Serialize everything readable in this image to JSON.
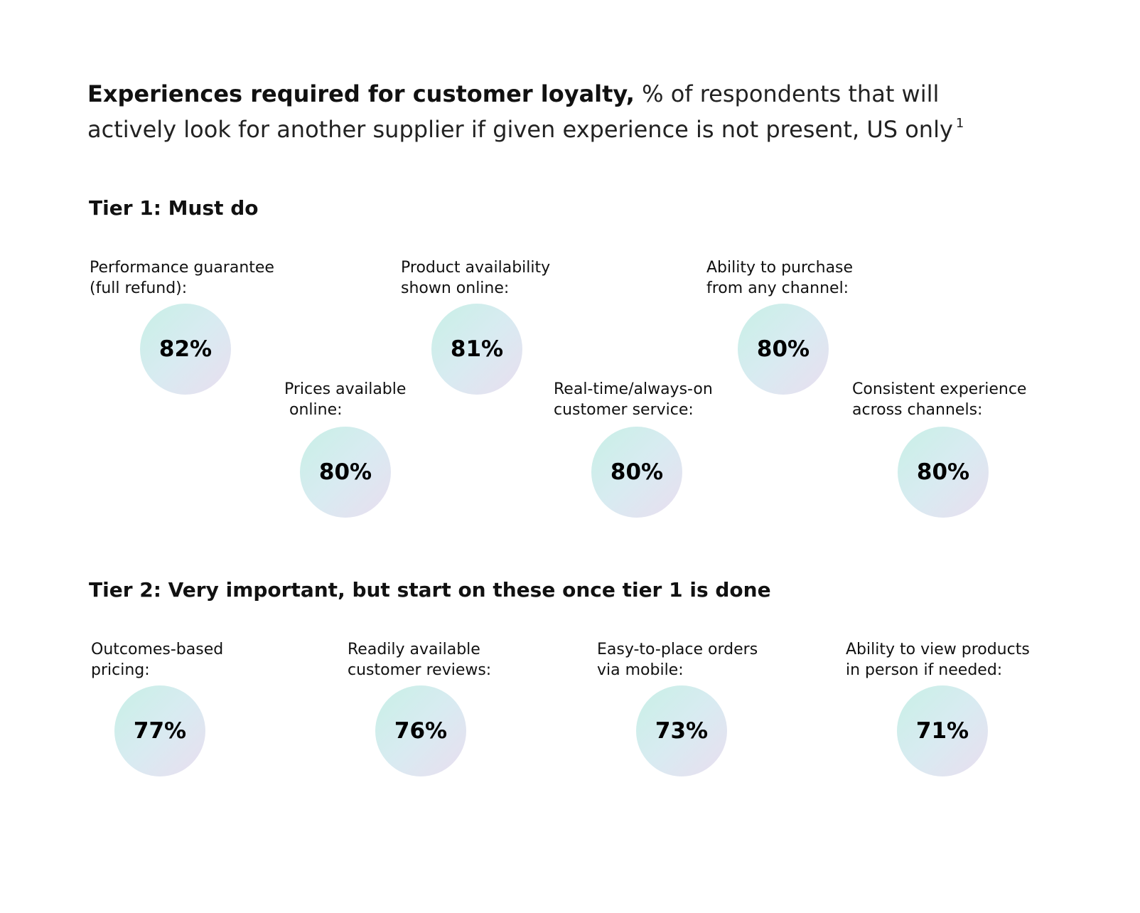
{
  "title": {
    "bold": "Experiences required for customer loyalty,",
    "rest": "% of respondents that will actively look for another supplier if given experience is not present, US only",
    "footnote": "1"
  },
  "tier1": {
    "heading": "Tier 1: Must do",
    "items": [
      {
        "label": "Performance guarantee\n(full refund):",
        "value": "82%"
      },
      {
        "label": "Product availability\nshown online:",
        "value": "81%"
      },
      {
        "label": "Ability to purchase\nfrom any channel:",
        "value": "80%"
      },
      {
        "label": "Prices available\n online:",
        "value": "80%"
      },
      {
        "label": "Real-time/always-on\ncustomer service:",
        "value": "80%"
      },
      {
        "label": "Consistent experience\nacross channels:",
        "value": "80%"
      }
    ]
  },
  "tier2": {
    "heading": "Tier 2: Very important, but start on these once tier 1 is done",
    "items": [
      {
        "label": "Outcomes-based\npricing:",
        "value": "77%"
      },
      {
        "label": "Readily available\ncustomer reviews:",
        "value": "76%"
      },
      {
        "label": "Easy-to-place orders\nvia mobile:",
        "value": "73%"
      },
      {
        "label": "Ability to view products\nin person if needed:",
        "value": "71%"
      }
    ]
  }
}
